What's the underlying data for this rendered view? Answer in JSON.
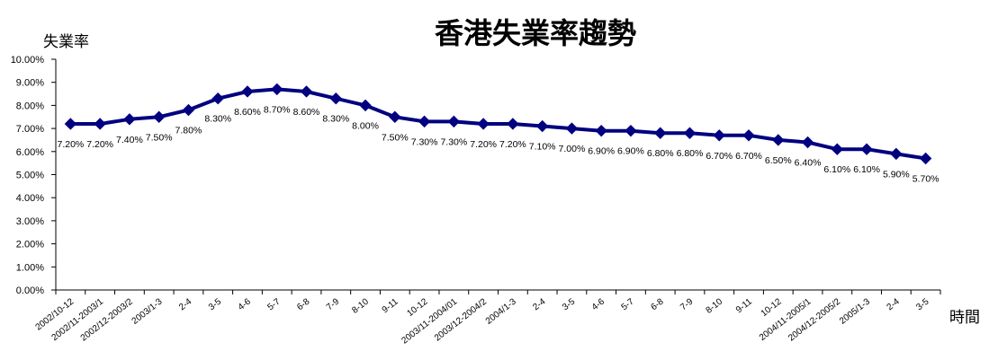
{
  "chart_data": {
    "type": "line",
    "title": "香港失業率趨勢",
    "ylabel": "失業率",
    "xlabel": "時間",
    "ylim": [
      0,
      10
    ],
    "y_ticks": [
      "0.00%",
      "1.00%",
      "2.00%",
      "3.00%",
      "4.00%",
      "5.00%",
      "6.00%",
      "7.00%",
      "8.00%",
      "9.00%",
      "10.00%"
    ],
    "categories": [
      "2002/10-12",
      "2002/11-2003/1",
      "2002/12-2003/2",
      "2003/1-3",
      "2-4",
      "3-5",
      "4-6",
      "5-7",
      "6-8",
      "7-9",
      "8-10",
      "9-11",
      "10-12",
      "2003/11-2004/01",
      "2003/12-2004/2",
      "2004/1-3",
      "2-4",
      "3-5",
      "4-6",
      "5-7",
      "6-8",
      "7-9",
      "8-10",
      "9-11",
      "10-12",
      "2004/11-2005/1",
      "2004/12-2005/2",
      "2005/1-3",
      "2-4",
      "3-5"
    ],
    "values": [
      7.2,
      7.2,
      7.4,
      7.5,
      7.8,
      8.3,
      8.6,
      8.7,
      8.6,
      8.3,
      8.0,
      7.5,
      7.3,
      7.3,
      7.2,
      7.2,
      7.1,
      7.0,
      6.9,
      6.9,
      6.8,
      6.8,
      6.7,
      6.7,
      6.5,
      6.4,
      6.1,
      6.1,
      5.9,
      5.7
    ],
    "data_labels": [
      "7.20%",
      "7.20%",
      "7.40%",
      "7.50%",
      "7.80%",
      "8.30%",
      "8.60%",
      "8.70%",
      "8.60%",
      "8.30%",
      "8.00%",
      "7.50%",
      "7.30%",
      "7.30%",
      "7.20%",
      "7.20%",
      "7.10%",
      "7.00%",
      "6.90%",
      "6.90%",
      "6.80%",
      "6.80%",
      "6.70%",
      "6.70%",
      "6.50%",
      "6.40%",
      "6.10%",
      "6.10%",
      "5.90%",
      "5.70%"
    ],
    "line_color": "#000080",
    "grid": false,
    "legend": "none"
  }
}
